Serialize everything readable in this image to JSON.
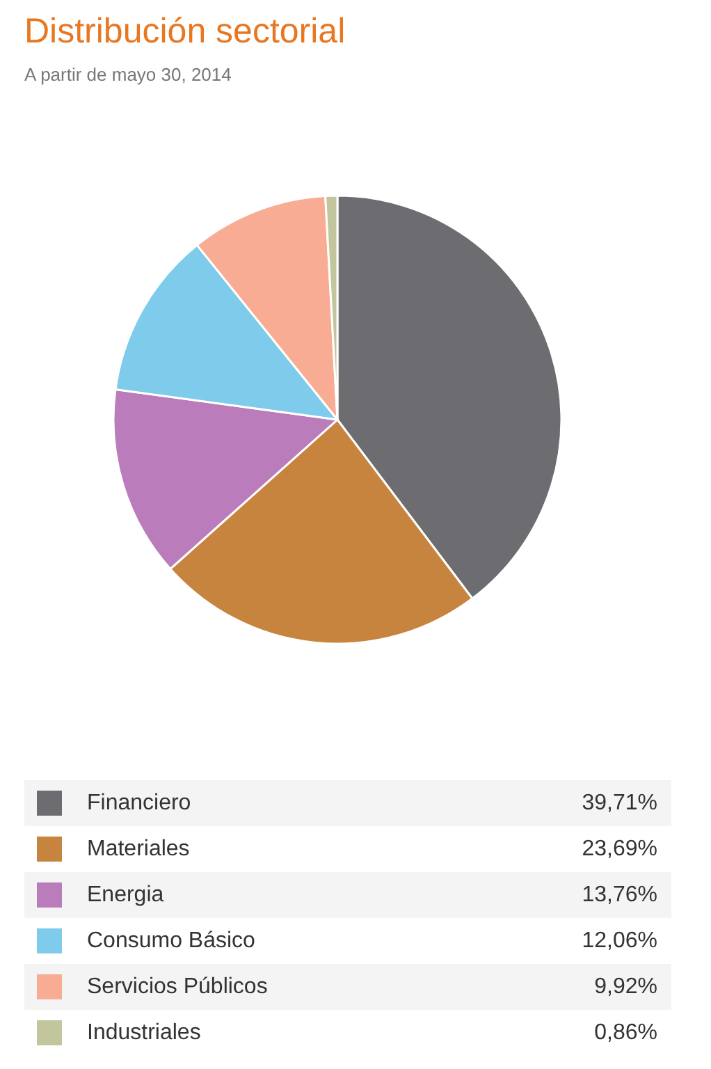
{
  "chart_data": {
    "type": "pie",
    "title": "Distribución sectorial",
    "subtitle": "A partir de mayo 30, 2014",
    "categories": [
      "Financiero",
      "Materiales",
      "Energia",
      "Consumo Básico",
      "Servicios Públicos",
      "Industriales"
    ],
    "values": [
      39.71,
      23.69,
      13.76,
      12.06,
      9.92,
      0.86
    ],
    "value_labels": [
      "39,71%",
      "23,69%",
      "13,76%",
      "12,06%",
      "9,92%",
      "0,86%"
    ],
    "colors": [
      "#6d6c71",
      "#c7843f",
      "#bb7cbb",
      "#7fcbeb",
      "#f8ac93",
      "#c3c69c"
    ],
    "legend": "bottom"
  }
}
